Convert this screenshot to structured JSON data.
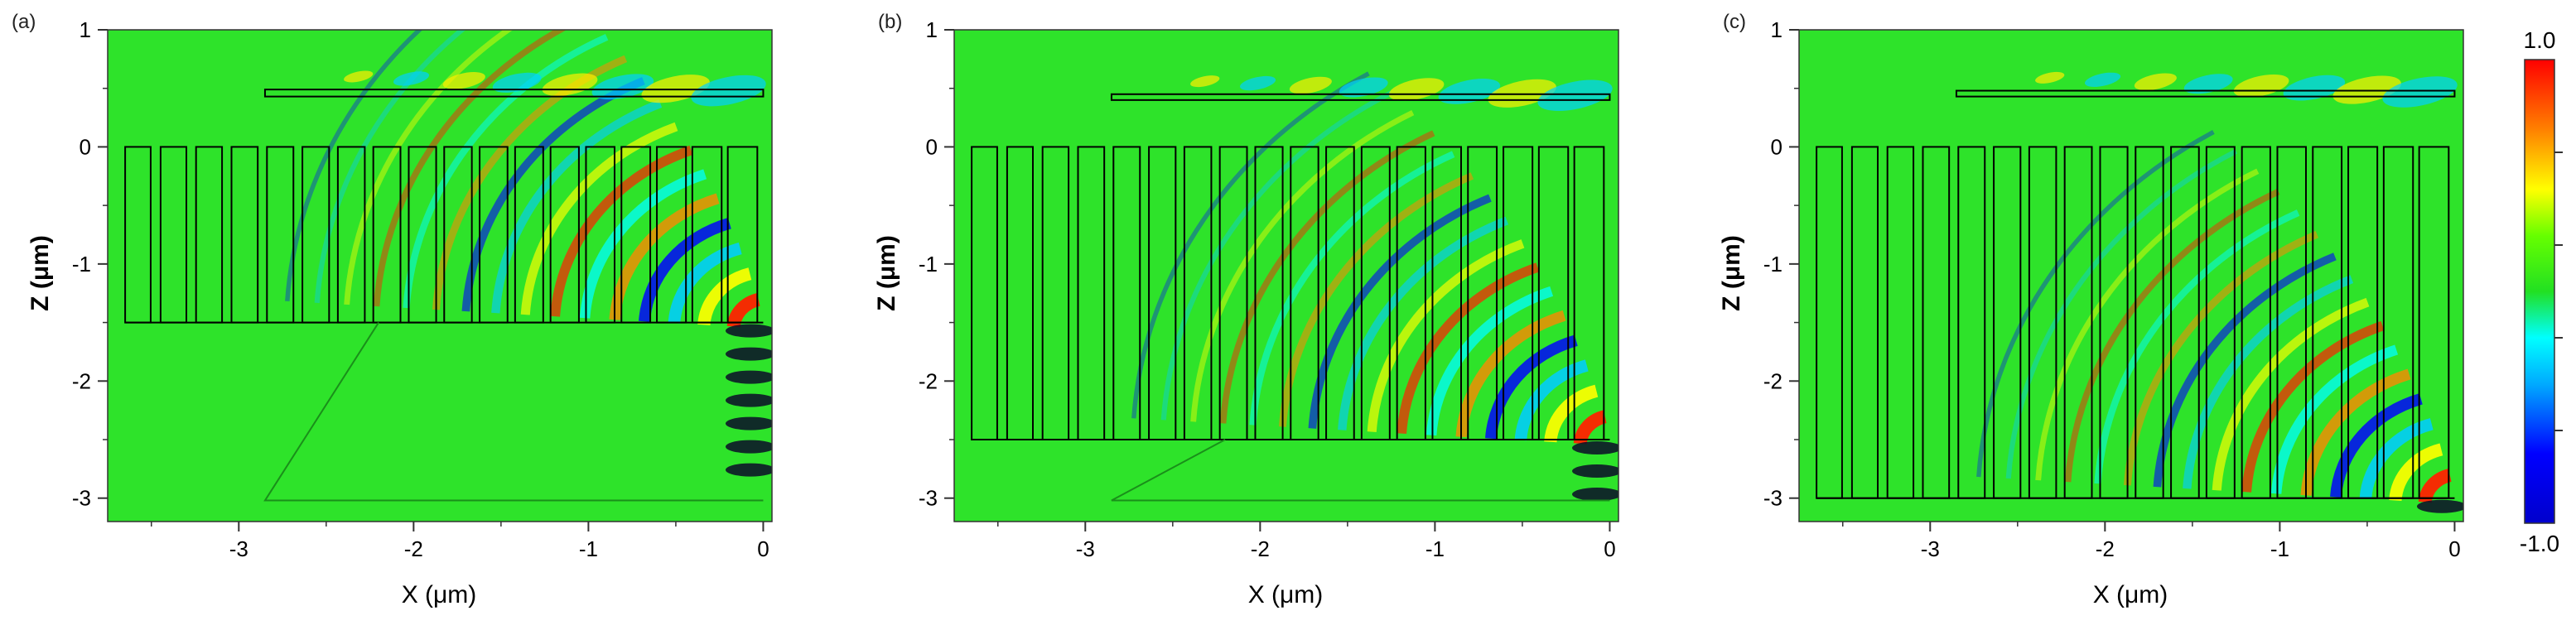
{
  "colors": {
    "field_background": "#2ee32a",
    "colormap": [
      "#00007f",
      "#0000ff",
      "#00a8ff",
      "#00ffff",
      "#7fff7f",
      "#1fe01f",
      "#ffff00",
      "#ff7f00",
      "#ff0000",
      "#7f0000"
    ],
    "outline": "#000000"
  },
  "colorbar": {
    "max_label": "1.0",
    "min_label": "-1.0"
  },
  "chart_data": [
    {
      "panel_label": "(a)",
      "type": "heatmap",
      "xlabel": "X (μm)",
      "ylabel": "Z (μm)",
      "xlim": [
        -3.75,
        0.05
      ],
      "ylim": [
        -3.2,
        1.0
      ],
      "xticks": [
        -3,
        -2,
        -1,
        0
      ],
      "yticks": [
        1,
        0,
        -1,
        -2,
        -3
      ],
      "xtick_labels": [
        "-3",
        "-2",
        "-1",
        "0"
      ],
      "ytick_labels": [
        "1",
        "0",
        "-1",
        "-2",
        "-3"
      ],
      "grating": {
        "x_start": -3.65,
        "x_end": 0,
        "z_top": 0,
        "z_bottom": -1.5,
        "periods": 18
      },
      "waveguide": {
        "x_start": -2.85,
        "x_end": 0,
        "z_top": 0.49,
        "z_bottom": 0.43
      },
      "lower_layer": {
        "present": true,
        "z_top": -1.5,
        "z_bottom": -3.02
      },
      "field_range": [
        -1.0,
        1.0
      ]
    },
    {
      "panel_label": "(b)",
      "type": "heatmap",
      "xlabel": "X (μm)",
      "ylabel": "Z (μm)",
      "xlim": [
        -3.75,
        0.05
      ],
      "ylim": [
        -3.2,
        1.0
      ],
      "xticks": [
        -3,
        -2,
        -1,
        0
      ],
      "yticks": [
        1,
        0,
        -1,
        -2,
        -3
      ],
      "xtick_labels": [
        "-3",
        "-2",
        "-1",
        "0"
      ],
      "ytick_labels": [
        "1",
        "0",
        "-1",
        "-2",
        "-3"
      ],
      "grating": {
        "x_start": -3.65,
        "x_end": 0,
        "z_top": 0,
        "z_bottom": -2.5,
        "periods": 18
      },
      "waveguide": {
        "x_start": -2.85,
        "x_end": 0,
        "z_top": 0.45,
        "z_bottom": 0.4
      },
      "lower_layer": {
        "present": true,
        "z_top": -2.5,
        "z_bottom": -3.02
      },
      "field_range": [
        -1.0,
        1.0
      ]
    },
    {
      "panel_label": "(c)",
      "type": "heatmap",
      "xlabel": "X (μm)",
      "ylabel": "Z (μm)",
      "xlim": [
        -3.75,
        0.05
      ],
      "ylim": [
        -3.2,
        1.0
      ],
      "xticks": [
        -3,
        -2,
        -1,
        0
      ],
      "yticks": [
        1,
        0,
        -1,
        -2,
        -3
      ],
      "xtick_labels": [
        "-3",
        "-2",
        "-1",
        "0"
      ],
      "ytick_labels": [
        "1",
        "0",
        "-1",
        "-2",
        "-3"
      ],
      "grating": {
        "x_start": -3.65,
        "x_end": 0,
        "z_top": 0,
        "z_bottom": -3.0,
        "periods": 18
      },
      "waveguide": {
        "x_start": -2.85,
        "x_end": 0,
        "z_top": 0.48,
        "z_bottom": 0.43
      },
      "lower_layer": {
        "present": false
      },
      "field_range": [
        -1.0,
        1.0
      ]
    }
  ]
}
